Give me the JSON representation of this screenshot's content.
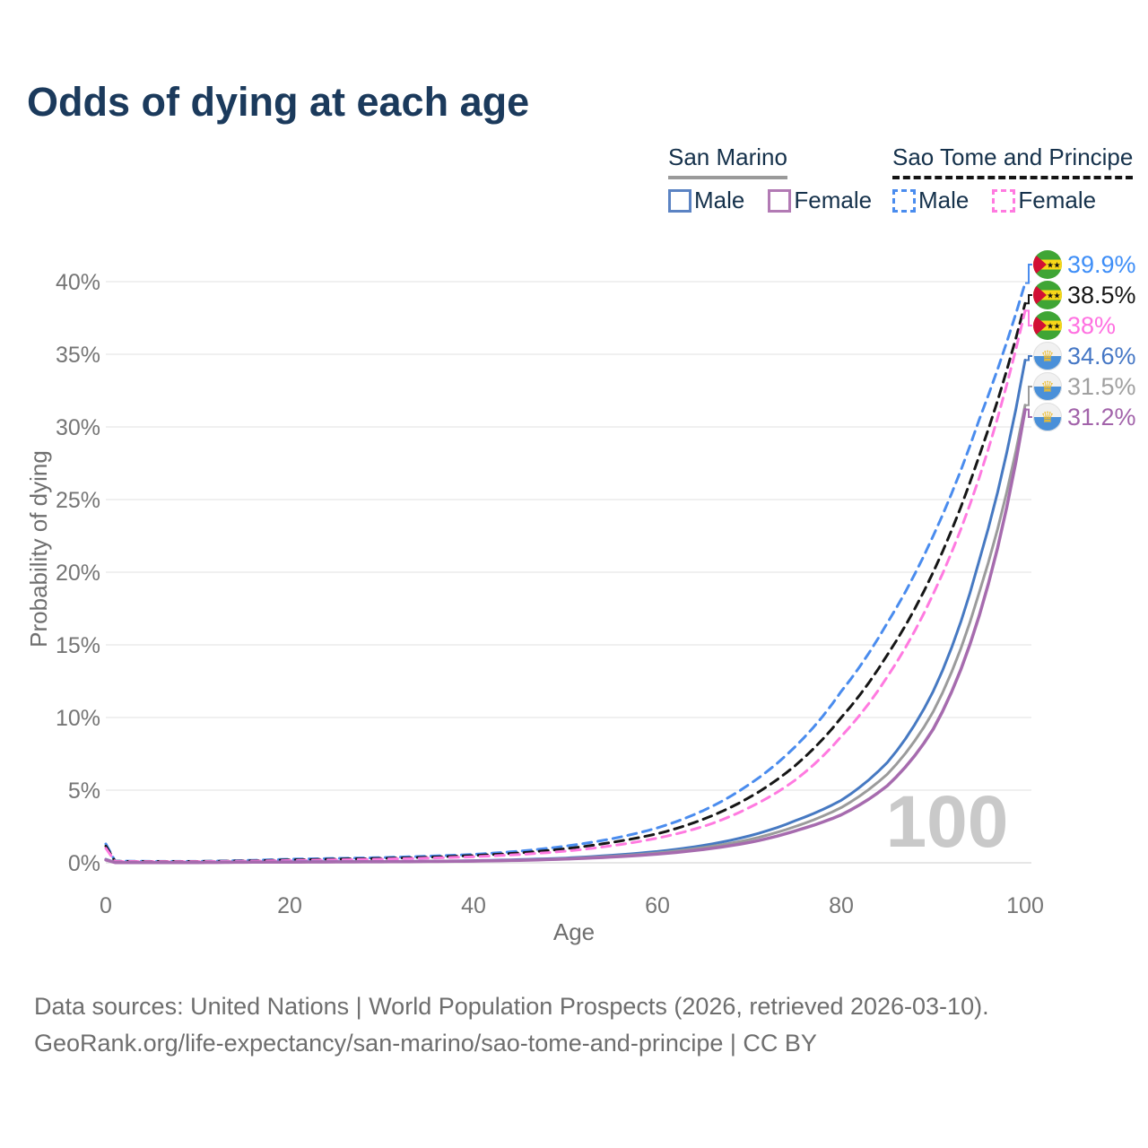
{
  "title": "Odds of dying at each age",
  "legend": {
    "groups": [
      {
        "name": "San Marino",
        "line_style": "solid",
        "underline_color": "#9a9a9a",
        "items": [
          {
            "label": "Male",
            "color": "#5b83c3"
          },
          {
            "label": "Female",
            "color": "#b27ab4"
          }
        ]
      },
      {
        "name": "Sao Tome and Principe",
        "line_style": "dashed",
        "underline_color": "#141414",
        "items": [
          {
            "label": "Male",
            "color": "#4a8cee"
          },
          {
            "label": "Female",
            "color": "#ff7ae0"
          }
        ]
      }
    ]
  },
  "chart_data": {
    "type": "line",
    "title": "Odds of dying at each age",
    "xlabel": "Age",
    "ylabel": "Probability of dying",
    "watermark_hover_age": "100",
    "grid": true,
    "x_range": [
      0,
      100
    ],
    "y_range_percent": [
      0,
      40
    ],
    "x_ticks": [
      {
        "label": "0",
        "value": 0
      },
      {
        "label": "20",
        "value": 20
      },
      {
        "label": "40",
        "value": 40
      },
      {
        "label": "60",
        "value": 60
      },
      {
        "label": "80",
        "value": 80
      },
      {
        "label": "100",
        "value": 100
      }
    ],
    "y_ticks": [
      {
        "label": "0%",
        "value": 0
      },
      {
        "label": "5%",
        "value": 5
      },
      {
        "label": "10%",
        "value": 10
      },
      {
        "label": "15%",
        "value": 15
      },
      {
        "label": "20%",
        "value": 20
      },
      {
        "label": "25%",
        "value": 25
      },
      {
        "label": "30%",
        "value": 30
      },
      {
        "label": "35%",
        "value": 35
      },
      {
        "label": "40%",
        "value": 40
      }
    ],
    "ages": [
      0,
      1,
      5,
      10,
      15,
      20,
      25,
      30,
      35,
      40,
      45,
      50,
      55,
      60,
      65,
      70,
      75,
      80,
      85,
      90,
      95,
      100
    ],
    "series": [
      {
        "id": "sao-tome-male",
        "name": "Sao Tome and Principe — Male",
        "color": "#4a8cee",
        "label_color": "#3e8ef7",
        "dashed": true,
        "width": 3,
        "flag": "sao-tome",
        "end_label": "39.9%",
        "values_percent": [
          1.3,
          0.12,
          0.1,
          0.1,
          0.16,
          0.25,
          0.3,
          0.36,
          0.45,
          0.58,
          0.8,
          1.15,
          1.65,
          2.4,
          3.6,
          5.4,
          8.0,
          11.8,
          16.5,
          22.5,
          30.5,
          39.9
        ]
      },
      {
        "id": "sao-tome-total",
        "name": "Sao Tome and Principe — Both sexes",
        "color": "#161616",
        "label_color": "#161616",
        "dashed": true,
        "width": 3,
        "flag": "sao-tome",
        "end_label": "38.5%",
        "values_percent": [
          1.15,
          0.1,
          0.09,
          0.09,
          0.13,
          0.2,
          0.25,
          0.3,
          0.38,
          0.5,
          0.68,
          0.97,
          1.4,
          2.0,
          3.0,
          4.5,
          6.7,
          10.0,
          14.3,
          20.0,
          28.0,
          38.5
        ]
      },
      {
        "id": "sao-tome-female",
        "name": "Sao Tome and Principe — Female",
        "color": "#ff7ae0",
        "label_color": "#ff70e1",
        "dashed": true,
        "width": 3,
        "flag": "sao-tome",
        "end_label": "38%",
        "values_percent": [
          1.0,
          0.09,
          0.08,
          0.08,
          0.11,
          0.16,
          0.2,
          0.25,
          0.32,
          0.42,
          0.57,
          0.8,
          1.17,
          1.7,
          2.5,
          3.8,
          5.7,
          8.7,
          12.8,
          18.5,
          26.5,
          38.0
        ]
      },
      {
        "id": "san-marino-male",
        "name": "San Marino — Male",
        "color": "#4679c2",
        "label_color": "#4577c5",
        "dashed": false,
        "width": 3,
        "flag": "san-marino",
        "end_label": "34.6%",
        "values_percent": [
          0.25,
          0.03,
          0.02,
          0.03,
          0.05,
          0.07,
          0.08,
          0.09,
          0.11,
          0.15,
          0.22,
          0.33,
          0.52,
          0.78,
          1.2,
          1.85,
          2.9,
          4.3,
          6.9,
          11.8,
          20.8,
          34.6
        ]
      },
      {
        "id": "san-marino-total",
        "name": "San Marino — Both sexes",
        "color": "#9b9b9b",
        "label_color": "#a0a0a0",
        "dashed": false,
        "width": 3,
        "flag": "san-marino",
        "end_label": "31.5%",
        "values_percent": [
          0.22,
          0.03,
          0.02,
          0.03,
          0.04,
          0.06,
          0.07,
          0.08,
          0.1,
          0.13,
          0.19,
          0.29,
          0.45,
          0.68,
          1.05,
          1.6,
          2.5,
          3.8,
          6.1,
          10.4,
          18.6,
          31.5
        ]
      },
      {
        "id": "san-marino-female",
        "name": "San Marino — Female",
        "color": "#a66bae",
        "label_color": "#a263aa",
        "dashed": false,
        "width": 3.5,
        "flag": "san-marino",
        "end_label": "31.2%",
        "values_percent": [
          0.2,
          0.02,
          0.02,
          0.02,
          0.04,
          0.05,
          0.06,
          0.07,
          0.09,
          0.12,
          0.17,
          0.26,
          0.4,
          0.6,
          0.92,
          1.4,
          2.2,
          3.3,
          5.3,
          9.2,
          17.0,
          31.2
        ]
      }
    ]
  },
  "footer": {
    "line1": "Data sources: United Nations | World Population Prospects (2026, retrieved 2026-03-10).",
    "line2": "GeoRank.org/life-expectancy/san-marino/sao-tome-and-principe | CC BY"
  }
}
